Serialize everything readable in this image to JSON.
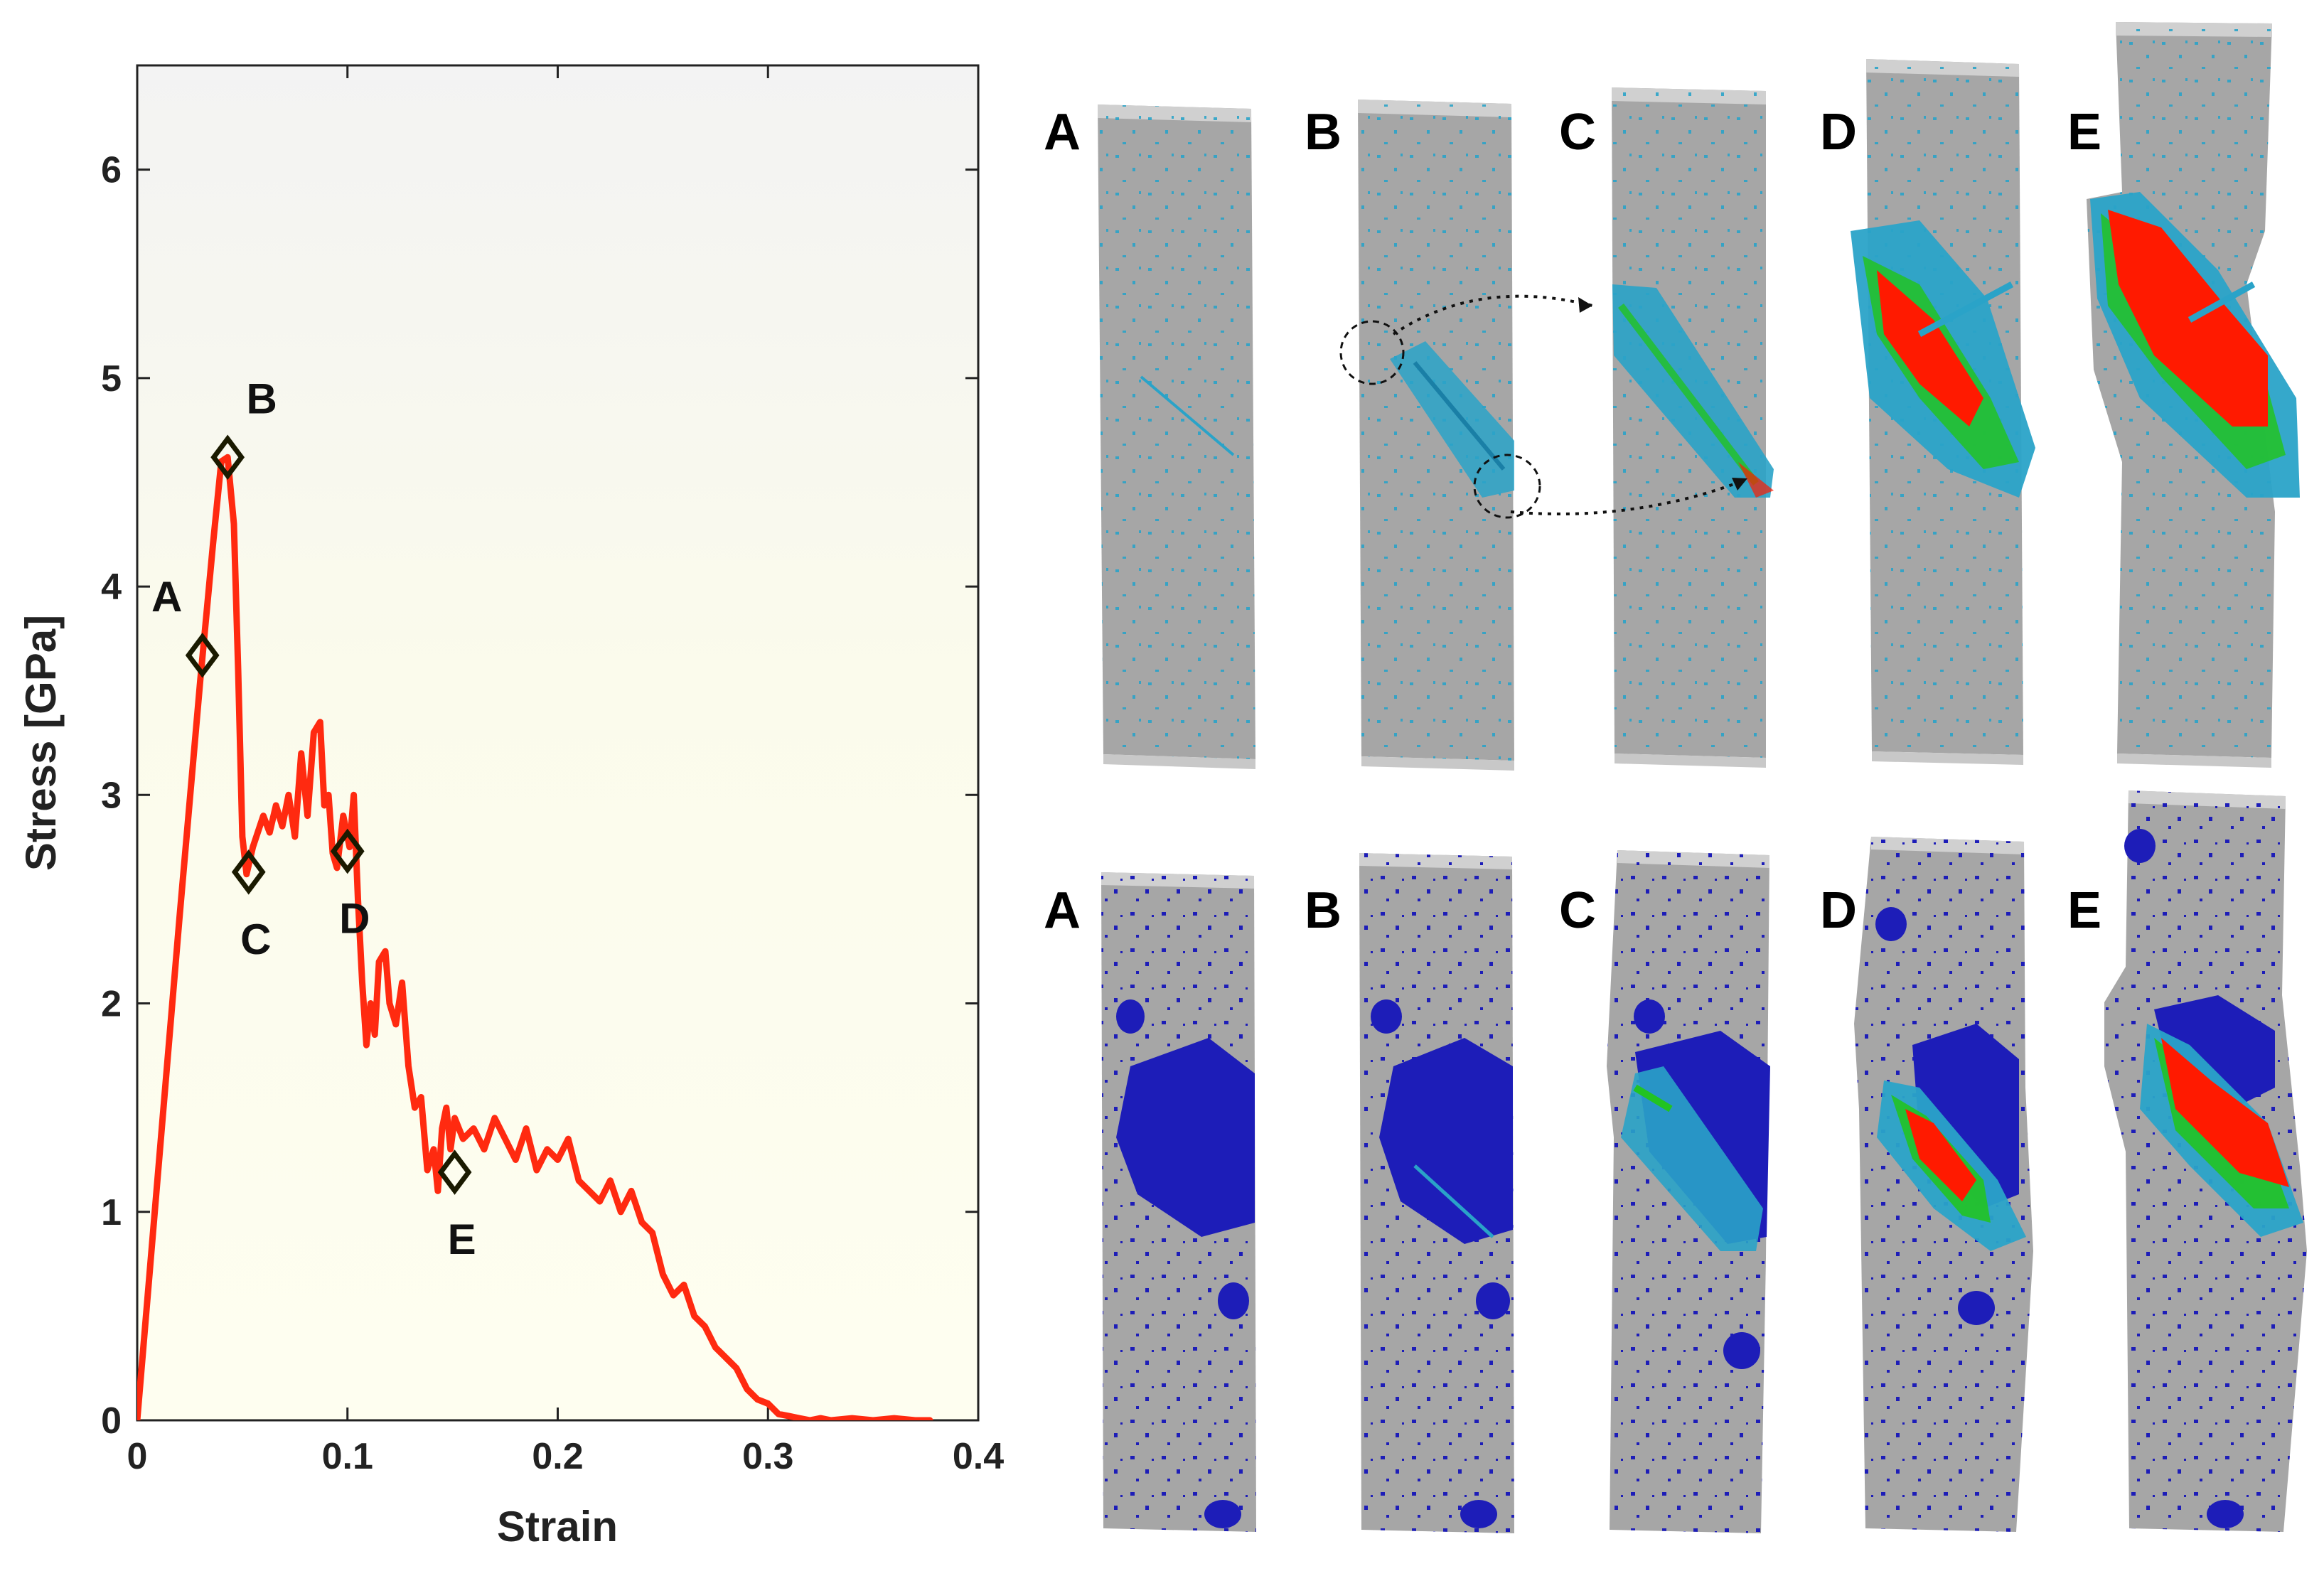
{
  "colors": {
    "curve": "#ff2a10",
    "marker": "#1a1a00",
    "specimen": "#a6a6a6",
    "void": "#1d1db8",
    "damage_high": "#ff1a00",
    "damage_mid": "#22c322",
    "damage_low": "#2aa3c8"
  },
  "chart_data": {
    "type": "line",
    "xlabel": "Strain",
    "ylabel": "Stress [GPa]",
    "xlim": [
      0,
      0.4
    ],
    "ylim": [
      0,
      6.5
    ],
    "xticks": [
      0,
      0.1,
      0.2,
      0.3,
      0.4
    ],
    "xtick_labels": [
      "0",
      "0.1",
      "0.2",
      "0.3",
      "0.4"
    ],
    "yticks": [
      0,
      1,
      2,
      3,
      4,
      5,
      6
    ],
    "ytick_labels": [
      "0",
      "1",
      "2",
      "3",
      "4",
      "5",
      "6"
    ],
    "series": [
      {
        "name": "stress-strain",
        "x": [
          0,
          0.01,
          0.02,
          0.03,
          0.036,
          0.04,
          0.043,
          0.046,
          0.048,
          0.05,
          0.052,
          0.055,
          0.06,
          0.063,
          0.066,
          0.069,
          0.072,
          0.075,
          0.078,
          0.081,
          0.084,
          0.087,
          0.089,
          0.091,
          0.093,
          0.095,
          0.098,
          0.101,
          0.103,
          0.105,
          0.107,
          0.109,
          0.111,
          0.113,
          0.115,
          0.118,
          0.12,
          0.123,
          0.126,
          0.129,
          0.132,
          0.135,
          0.138,
          0.141,
          0.143,
          0.145,
          0.147,
          0.149,
          0.151,
          0.155,
          0.16,
          0.165,
          0.17,
          0.175,
          0.18,
          0.185,
          0.19,
          0.195,
          0.2,
          0.205,
          0.21,
          0.215,
          0.22,
          0.225,
          0.23,
          0.235,
          0.24,
          0.245,
          0.25,
          0.255,
          0.26,
          0.265,
          0.27,
          0.275,
          0.28,
          0.285,
          0.29,
          0.295,
          0.3,
          0.305,
          0.31,
          0.315,
          0.32,
          0.325,
          0.33,
          0.34,
          0.35,
          0.36,
          0.37,
          0.377
        ],
        "y": [
          0,
          1.2,
          2.4,
          3.55,
          4.2,
          4.6,
          4.62,
          4.3,
          3.6,
          2.8,
          2.62,
          2.75,
          2.9,
          2.82,
          2.95,
          2.85,
          3.0,
          2.8,
          3.2,
          2.9,
          3.3,
          3.35,
          2.95,
          3.0,
          2.72,
          2.65,
          2.9,
          2.75,
          3.0,
          2.5,
          2.1,
          1.8,
          2.0,
          1.85,
          2.2,
          2.25,
          2.0,
          1.9,
          2.1,
          1.7,
          1.5,
          1.55,
          1.2,
          1.3,
          1.1,
          1.4,
          1.5,
          1.3,
          1.45,
          1.35,
          1.4,
          1.3,
          1.45,
          1.35,
          1.25,
          1.4,
          1.2,
          1.3,
          1.25,
          1.35,
          1.15,
          1.1,
          1.05,
          1.15,
          1.0,
          1.1,
          0.95,
          0.9,
          0.7,
          0.6,
          0.65,
          0.5,
          0.45,
          0.35,
          0.3,
          0.25,
          0.15,
          0.1,
          0.08,
          0.03,
          0.02,
          0.01,
          0.0,
          0.01,
          0.0,
          0.01,
          0.0,
          0.01,
          0.0,
          0.0
        ]
      }
    ],
    "markers": [
      {
        "label": "A",
        "x": 0.031,
        "y": 3.67,
        "label_pos": "above-left"
      },
      {
        "label": "B",
        "x": 0.043,
        "y": 4.62,
        "label_pos": "above-right"
      },
      {
        "label": "C",
        "x": 0.053,
        "y": 2.63,
        "label_pos": "below"
      },
      {
        "label": "D",
        "x": 0.1,
        "y": 2.73,
        "label_pos": "below"
      },
      {
        "label": "E",
        "x": 0.151,
        "y": 1.19,
        "label_pos": "below"
      }
    ]
  },
  "panels": {
    "top_row": {
      "description": "damage contours in specimen cross-section",
      "labels": [
        "A",
        "B",
        "C",
        "D",
        "E"
      ]
    },
    "bottom_row": {
      "description": "void distribution with damage overlay",
      "labels": [
        "A",
        "B",
        "C",
        "D",
        "E"
      ]
    }
  }
}
